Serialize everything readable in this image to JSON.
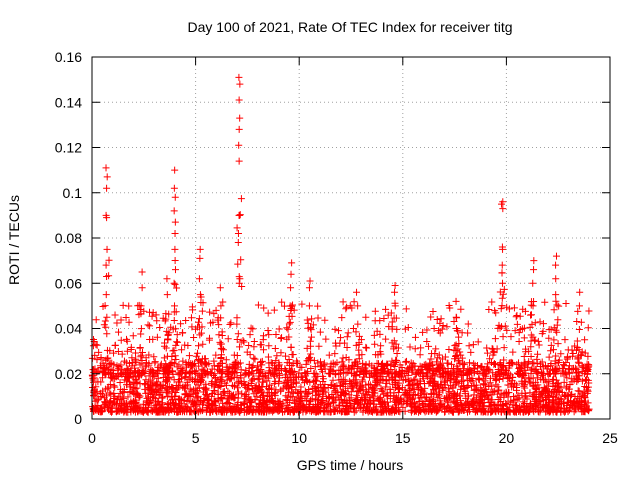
{
  "chart_data": {
    "type": "scatter",
    "title": "Day 100 of 2021, Rate Of TEC Index for receiver titg",
    "xlabel": "GPS time / hours",
    "ylabel": "ROTI / TECUs",
    "xlim": [
      0,
      25
    ],
    "ylim": [
      0,
      0.16
    ],
    "xticks": [
      0,
      5,
      10,
      15,
      20,
      25
    ],
    "xtick_labels": [
      "0",
      "5",
      "10",
      "15",
      "20",
      "25"
    ],
    "yticks": [
      0,
      0.02,
      0.04,
      0.06,
      0.08,
      0.1,
      0.12,
      0.14,
      0.16
    ],
    "ytick_labels": [
      "0",
      "0.02",
      "0.04",
      "0.06",
      "0.08",
      "0.1",
      "0.12",
      "0.14",
      "0.16"
    ],
    "grid": true,
    "marker": "+",
    "series_color": "#ff0000",
    "data_range_hours": [
      0,
      24
    ],
    "baseline_band": [
      0.003,
      0.025
    ],
    "spikes": [
      {
        "x": 0.7,
        "y": [
          0.045,
          0.055,
          0.063,
          0.075,
          0.089,
          0.09,
          0.102,
          0.107,
          0.111
        ]
      },
      {
        "x": 2.4,
        "y": [
          0.05,
          0.058,
          0.065
        ]
      },
      {
        "x": 3.6,
        "y": [
          0.055,
          0.062
        ]
      },
      {
        "x": 4.0,
        "y": [
          0.05,
          0.06,
          0.066,
          0.082,
          0.087,
          0.092,
          0.098,
          0.102,
          0.11
        ]
      },
      {
        "x": 5.2,
        "y": [
          0.055,
          0.062,
          0.071,
          0.075
        ]
      },
      {
        "x": 6.2,
        "y": [
          0.05,
          0.058
        ]
      },
      {
        "x": 7.1,
        "y": [
          0.06,
          0.062,
          0.078,
          0.09,
          0.09,
          0.114,
          0.121,
          0.128,
          0.133,
          0.141,
          0.148,
          0.151
        ]
      },
      {
        "x": 9.6,
        "y": [
          0.05,
          0.058,
          0.064,
          0.069
        ]
      },
      {
        "x": 10.5,
        "y": [
          0.05,
          0.058,
          0.061
        ]
      },
      {
        "x": 12.8,
        "y": [
          0.05,
          0.056
        ]
      },
      {
        "x": 14.6,
        "y": [
          0.05,
          0.056,
          0.059
        ]
      },
      {
        "x": 17.6,
        "y": [
          0.04,
          0.045
        ]
      },
      {
        "x": 19.8,
        "y": [
          0.06,
          0.068,
          0.075,
          0.076,
          0.093,
          0.095,
          0.096
        ]
      },
      {
        "x": 21.3,
        "y": [
          0.05,
          0.06,
          0.066,
          0.07
        ]
      },
      {
        "x": 22.4,
        "y": [
          0.055,
          0.062,
          0.068,
          0.072
        ]
      },
      {
        "x": 23.5,
        "y": [
          0.05,
          0.056
        ]
      }
    ]
  }
}
